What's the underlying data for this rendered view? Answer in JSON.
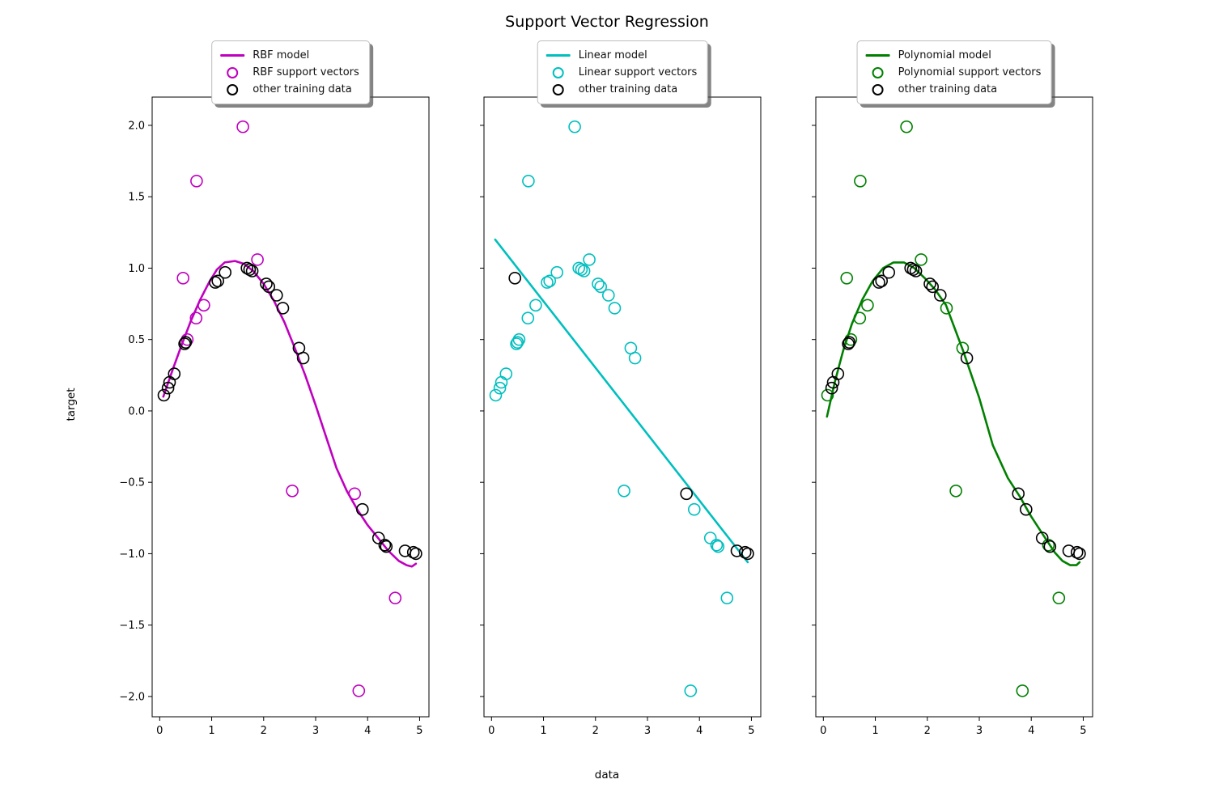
{
  "title": "Support Vector Regression",
  "chart_data": {
    "type": "scatter",
    "title": "Support Vector Regression",
    "xlabel": "data",
    "ylabel": "target",
    "xlim": [
      -0.145,
      5.18
    ],
    "ylim": [
      -2.142,
      2.198
    ],
    "xticks": [
      0,
      1,
      2,
      3,
      4,
      5
    ],
    "yticks": [
      2.0,
      1.5,
      1.0,
      0.5,
      0.0,
      -0.5,
      -1.0,
      -1.5,
      -2.0
    ],
    "grid": false,
    "legend_position": "upper center, above each subplot, fancybox with shadow",
    "other_color": "#000000",
    "other_label": "other training data",
    "training_points": [
      [
        0.08,
        0.11
      ],
      [
        0.16,
        0.16
      ],
      [
        0.19,
        0.2
      ],
      [
        0.28,
        0.26
      ],
      [
        0.45,
        0.93
      ],
      [
        0.48,
        0.47
      ],
      [
        0.5,
        0.48
      ],
      [
        0.53,
        0.5
      ],
      [
        0.7,
        0.65
      ],
      [
        0.71,
        1.61
      ],
      [
        0.85,
        0.74
      ],
      [
        1.07,
        0.9
      ],
      [
        1.12,
        0.91
      ],
      [
        1.26,
        0.97
      ],
      [
        1.6,
        1.99
      ],
      [
        1.68,
        1.0
      ],
      [
        1.73,
        0.99
      ],
      [
        1.78,
        0.98
      ],
      [
        1.88,
        1.06
      ],
      [
        2.05,
        0.89
      ],
      [
        2.1,
        0.87
      ],
      [
        2.25,
        0.81
      ],
      [
        2.37,
        0.72
      ],
      [
        2.55,
        -0.56
      ],
      [
        2.68,
        0.44
      ],
      [
        2.76,
        0.37
      ],
      [
        3.75,
        -0.58
      ],
      [
        3.83,
        -1.96
      ],
      [
        3.9,
        -0.69
      ],
      [
        4.21,
        -0.89
      ],
      [
        4.33,
        -0.94
      ],
      [
        4.36,
        -0.95
      ],
      [
        4.53,
        -1.31
      ],
      [
        4.72,
        -0.98
      ],
      [
        4.88,
        -0.99
      ],
      [
        4.93,
        -1.0
      ]
    ],
    "panels": [
      {
        "name": "RBF",
        "color": "#bf00bf",
        "legend": [
          {
            "marker": "line",
            "label": "RBF model"
          },
          {
            "marker": "circle",
            "label": "RBF support vectors"
          },
          {
            "marker": "circle-black",
            "label": "other training data"
          }
        ],
        "support_vector_indices": [
          4,
          7,
          8,
          9,
          10,
          14,
          18,
          23,
          26,
          27,
          32
        ],
        "model_curve": [
          [
            0.07,
            0.1
          ],
          [
            0.25,
            0.29
          ],
          [
            0.42,
            0.46
          ],
          [
            0.6,
            0.63
          ],
          [
            0.78,
            0.78
          ],
          [
            0.95,
            0.9
          ],
          [
            1.1,
            0.99
          ],
          [
            1.25,
            1.04
          ],
          [
            1.45,
            1.05
          ],
          [
            1.62,
            1.03
          ],
          [
            1.8,
            0.98
          ],
          [
            2.0,
            0.89
          ],
          [
            2.2,
            0.77
          ],
          [
            2.4,
            0.62
          ],
          [
            2.6,
            0.44
          ],
          [
            2.8,
            0.25
          ],
          [
            3.0,
            0.04
          ],
          [
            3.2,
            -0.18
          ],
          [
            3.4,
            -0.4
          ],
          [
            3.6,
            -0.56
          ],
          [
            3.8,
            -0.69
          ],
          [
            4.0,
            -0.8
          ],
          [
            4.2,
            -0.89
          ],
          [
            4.4,
            -0.98
          ],
          [
            4.6,
            -1.05
          ],
          [
            4.75,
            -1.08
          ],
          [
            4.85,
            -1.09
          ],
          [
            4.93,
            -1.07
          ]
        ]
      },
      {
        "name": "Linear",
        "color": "#00bfbf",
        "legend": [
          {
            "marker": "line",
            "label": "Linear model"
          },
          {
            "marker": "circle",
            "label": "Linear support vectors"
          },
          {
            "marker": "circle-black",
            "label": "other training data"
          }
        ],
        "support_vector_indices": [
          0,
          1,
          2,
          3,
          5,
          6,
          7,
          8,
          9,
          10,
          11,
          12,
          13,
          14,
          15,
          16,
          17,
          18,
          19,
          20,
          21,
          22,
          23,
          24,
          25,
          27,
          28,
          29,
          30,
          31,
          32
        ],
        "model_curve": [
          [
            0.07,
            1.2
          ],
          [
            4.93,
            -1.06
          ]
        ]
      },
      {
        "name": "Polynomial",
        "color": "#008000",
        "legend": [
          {
            "marker": "line",
            "label": "Polynomial model"
          },
          {
            "marker": "circle",
            "label": "Polynomial support vectors"
          },
          {
            "marker": "circle-black",
            "label": "other training data"
          }
        ],
        "support_vector_indices": [
          0,
          4,
          7,
          8,
          9,
          10,
          14,
          18,
          22,
          23,
          24,
          27,
          30,
          32
        ],
        "model_curve": [
          [
            0.07,
            -0.04
          ],
          [
            0.22,
            0.2
          ],
          [
            0.38,
            0.42
          ],
          [
            0.55,
            0.61
          ],
          [
            0.75,
            0.78
          ],
          [
            0.95,
            0.91
          ],
          [
            1.15,
            1.0
          ],
          [
            1.35,
            1.04
          ],
          [
            1.55,
            1.04
          ],
          [
            1.75,
            1.0
          ],
          [
            1.95,
            0.93
          ],
          [
            2.15,
            0.85
          ],
          [
            2.36,
            0.74
          ],
          [
            2.69,
            0.42
          ],
          [
            3.0,
            0.09
          ],
          [
            3.26,
            -0.24
          ],
          [
            3.55,
            -0.47
          ],
          [
            3.78,
            -0.6
          ],
          [
            4.0,
            -0.74
          ],
          [
            4.25,
            -0.88
          ],
          [
            4.45,
            -0.99
          ],
          [
            4.6,
            -1.05
          ],
          [
            4.75,
            -1.08
          ],
          [
            4.87,
            -1.08
          ],
          [
            4.93,
            -1.06
          ]
        ]
      }
    ]
  }
}
